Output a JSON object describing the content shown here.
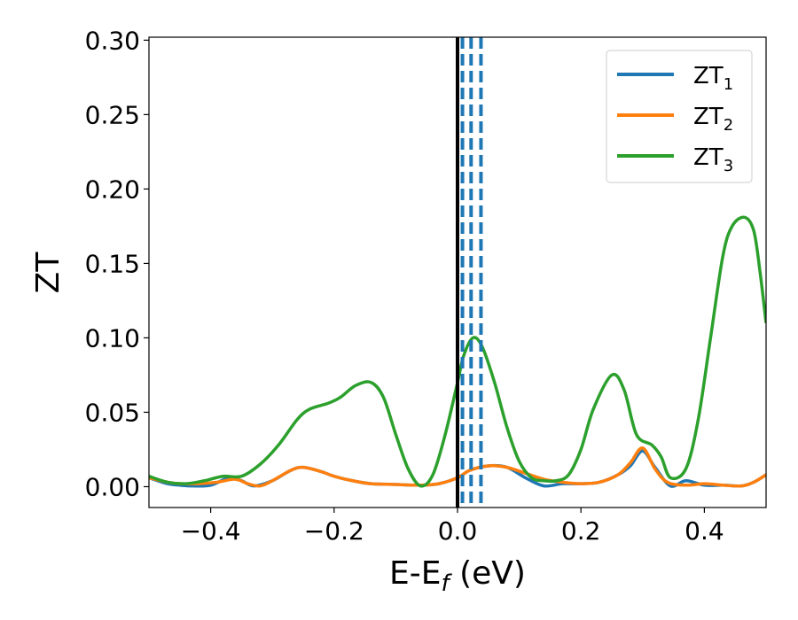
{
  "chart_data": {
    "type": "line",
    "xlabel": "E-E",
    "xlabel_sub": "f",
    "xlabel_unit": " (eV)",
    "ylabel": "ZT",
    "xlim": [
      -0.5,
      0.5
    ],
    "ylim": [
      -0.014,
      0.302
    ],
    "xticks": [
      -0.4,
      -0.2,
      0.0,
      0.2,
      0.4
    ],
    "xtick_labels": [
      "−0.4",
      "−0.2",
      "0.0",
      "0.2",
      "0.4"
    ],
    "yticks": [
      0.0,
      0.05,
      0.1,
      0.15,
      0.2,
      0.25,
      0.3
    ],
    "ytick_labels": [
      "0.00",
      "0.05",
      "0.10",
      "0.15",
      "0.20",
      "0.25",
      "0.30"
    ],
    "grid": false,
    "legend_position": "top-right",
    "vertical_line": {
      "x": 0.0,
      "color": "#000000",
      "style": "solid"
    },
    "dashed_lines": {
      "x": [
        0.008,
        0.022,
        0.038
      ],
      "color": "#1f77b4",
      "style": "dashed"
    },
    "series": [
      {
        "name": "ZT",
        "sub": "1",
        "color": "#1f77b4",
        "x": [
          -0.5,
          -0.47,
          -0.45,
          -0.43,
          -0.4,
          -0.37,
          -0.35,
          -0.33,
          -0.3,
          -0.27,
          -0.25,
          -0.22,
          -0.2,
          -0.17,
          -0.14,
          -0.1,
          -0.06,
          -0.03,
          0.0,
          0.02,
          0.05,
          0.08,
          0.11,
          0.14,
          0.17,
          0.2,
          0.23,
          0.26,
          0.28,
          0.3,
          0.32,
          0.345,
          0.37,
          0.4,
          0.43,
          0.46,
          0.48,
          0.5
        ],
        "y": [
          0.006,
          0.002,
          0.001,
          0.0005,
          0.001,
          0.006,
          0.004,
          0.0005,
          0.004,
          0.011,
          0.013,
          0.01,
          0.007,
          0.004,
          0.002,
          0.0015,
          0.001,
          0.002,
          0.006,
          0.011,
          0.014,
          0.013,
          0.006,
          0.0005,
          0.002,
          0.002,
          0.003,
          0.008,
          0.014,
          0.024,
          0.013,
          0.0005,
          0.004,
          0.001,
          0.001,
          0.0005,
          0.003,
          0.008
        ]
      },
      {
        "name": "ZT",
        "sub": "2",
        "color": "#ff7f0e",
        "x": [
          -0.5,
          -0.47,
          -0.45,
          -0.42,
          -0.39,
          -0.36,
          -0.34,
          -0.32,
          -0.3,
          -0.27,
          -0.25,
          -0.22,
          -0.2,
          -0.17,
          -0.14,
          -0.1,
          -0.06,
          -0.03,
          0.0,
          0.02,
          0.05,
          0.08,
          0.11,
          0.14,
          0.17,
          0.2,
          0.23,
          0.26,
          0.28,
          0.3,
          0.32,
          0.34,
          0.37,
          0.4,
          0.43,
          0.46,
          0.48,
          0.5
        ],
        "y": [
          0.006,
          0.003,
          0.002,
          0.002,
          0.003,
          0.005,
          0.002,
          0.0005,
          0.004,
          0.011,
          0.013,
          0.01,
          0.007,
          0.004,
          0.002,
          0.0015,
          0.001,
          0.002,
          0.006,
          0.011,
          0.014,
          0.013,
          0.009,
          0.005,
          0.003,
          0.002,
          0.003,
          0.008,
          0.016,
          0.026,
          0.012,
          0.003,
          0.001,
          0.002,
          0.001,
          0.0005,
          0.003,
          0.008
        ]
      },
      {
        "name": "ZT",
        "sub": "3",
        "color": "#2ca02c",
        "x": [
          -0.5,
          -0.47,
          -0.44,
          -0.41,
          -0.38,
          -0.35,
          -0.32,
          -0.29,
          -0.26,
          -0.24,
          -0.21,
          -0.19,
          -0.165,
          -0.14,
          -0.12,
          -0.1,
          -0.08,
          -0.06,
          -0.04,
          -0.02,
          0.0,
          0.01,
          0.025,
          0.04,
          0.06,
          0.08,
          0.1,
          0.12,
          0.14,
          0.16,
          0.18,
          0.2,
          0.22,
          0.25,
          0.27,
          0.29,
          0.315,
          0.33,
          0.345,
          0.37,
          0.39,
          0.41,
          0.43,
          0.445,
          0.465,
          0.48,
          0.49,
          0.5
        ],
        "y": [
          0.007,
          0.003,
          0.002,
          0.004,
          0.007,
          0.007,
          0.015,
          0.028,
          0.045,
          0.052,
          0.056,
          0.06,
          0.068,
          0.07,
          0.06,
          0.035,
          0.012,
          0.0005,
          0.008,
          0.035,
          0.07,
          0.088,
          0.1,
          0.094,
          0.07,
          0.04,
          0.017,
          0.006,
          0.004,
          0.004,
          0.008,
          0.025,
          0.052,
          0.075,
          0.065,
          0.035,
          0.028,
          0.02,
          0.006,
          0.012,
          0.045,
          0.1,
          0.155,
          0.175,
          0.181,
          0.172,
          0.145,
          0.11
        ]
      }
    ]
  }
}
